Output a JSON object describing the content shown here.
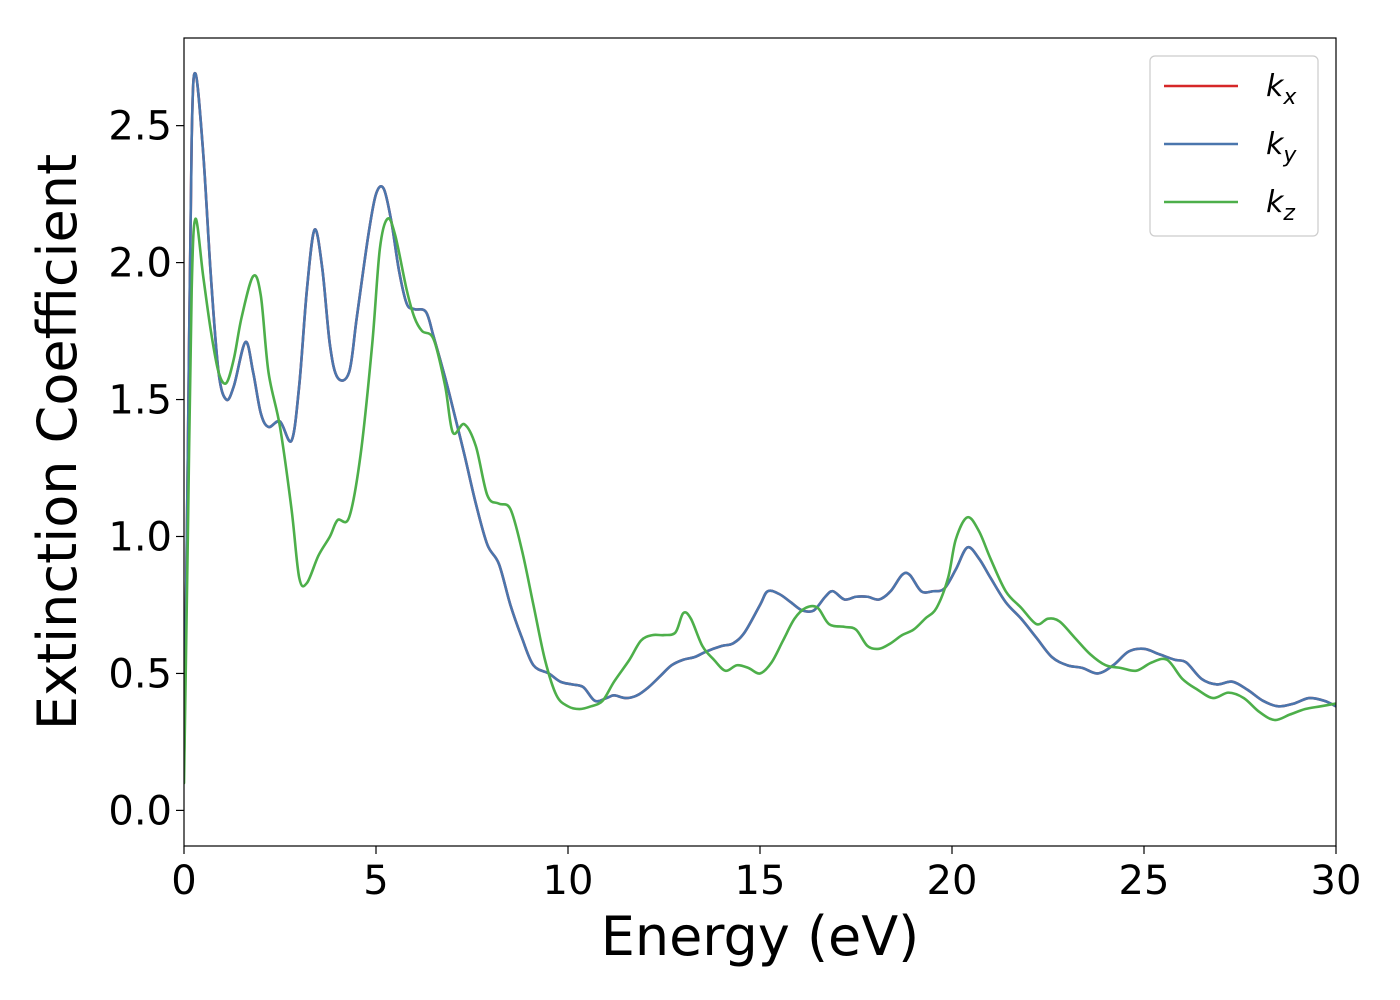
{
  "chart_data": {
    "type": "line",
    "title": "",
    "xlabel": "Energy (eV)",
    "ylabel": "Extinction Coefficient",
    "xlim": [
      0,
      30
    ],
    "ylim": [
      -0.13,
      2.82
    ],
    "xticks": [
      0,
      5,
      10,
      15,
      20,
      25,
      30
    ],
    "xtick_labels": [
      "0",
      "5",
      "10",
      "15",
      "20",
      "25",
      "30"
    ],
    "yticks": [
      0.0,
      0.5,
      1.0,
      1.5,
      2.0,
      2.5
    ],
    "ytick_labels": [
      "0.0",
      "0.5",
      "1.0",
      "1.5",
      "2.0",
      "2.5"
    ],
    "grid": false,
    "legend_position": "top-right",
    "series": [
      {
        "name": "k_x",
        "legend_base": "k",
        "legend_sub": "x",
        "color": "#d62728",
        "x": [
          0,
          0.1,
          0.2,
          0.3,
          0.5,
          0.7,
          0.9,
          1.1,
          1.3,
          1.6,
          1.8,
          2.0,
          2.2,
          2.5,
          2.8,
          3.0,
          3.2,
          3.4,
          3.6,
          3.8,
          4.0,
          4.3,
          4.5,
          4.8,
          5.0,
          5.2,
          5.4,
          5.6,
          5.8,
          6.0,
          6.3,
          6.5,
          6.8,
          7.0,
          7.3,
          7.6,
          7.9,
          8.2,
          8.5,
          8.8,
          9.1,
          9.5,
          9.8,
          10.1,
          10.4,
          10.7,
          11.0,
          11.2,
          11.5,
          11.8,
          12.1,
          12.4,
          12.7,
          13.0,
          13.3,
          13.6,
          14.0,
          14.3,
          14.6,
          15.0,
          15.2,
          15.5,
          15.8,
          16.1,
          16.4,
          16.7,
          16.9,
          17.2,
          17.5,
          17.8,
          18.1,
          18.4,
          18.7,
          18.9,
          19.2,
          19.5,
          19.8,
          20.1,
          20.4,
          20.7,
          21.0,
          21.4,
          21.8,
          22.2,
          22.6,
          23.0,
          23.4,
          23.8,
          24.2,
          24.6,
          25.0,
          25.4,
          25.8,
          26.1,
          26.5,
          26.9,
          27.3,
          27.7,
          28.1,
          28.5,
          28.9,
          29.3,
          29.7,
          30.0
        ],
        "y": [
          0.15,
          1.3,
          2.45,
          2.69,
          2.4,
          1.95,
          1.6,
          1.5,
          1.55,
          1.71,
          1.6,
          1.45,
          1.4,
          1.42,
          1.35,
          1.55,
          1.9,
          2.12,
          1.98,
          1.7,
          1.58,
          1.6,
          1.8,
          2.1,
          2.25,
          2.27,
          2.15,
          1.97,
          1.85,
          1.83,
          1.82,
          1.73,
          1.58,
          1.47,
          1.3,
          1.12,
          0.97,
          0.9,
          0.75,
          0.63,
          0.53,
          0.5,
          0.47,
          0.46,
          0.45,
          0.4,
          0.41,
          0.42,
          0.41,
          0.42,
          0.45,
          0.49,
          0.53,
          0.55,
          0.56,
          0.58,
          0.6,
          0.61,
          0.65,
          0.75,
          0.8,
          0.79,
          0.76,
          0.73,
          0.73,
          0.78,
          0.8,
          0.77,
          0.78,
          0.78,
          0.77,
          0.8,
          0.86,
          0.86,
          0.8,
          0.8,
          0.81,
          0.88,
          0.96,
          0.92,
          0.85,
          0.76,
          0.7,
          0.63,
          0.56,
          0.53,
          0.52,
          0.5,
          0.53,
          0.58,
          0.59,
          0.57,
          0.55,
          0.54,
          0.48,
          0.46,
          0.47,
          0.44,
          0.4,
          0.38,
          0.39,
          0.41,
          0.4,
          0.38
        ]
      },
      {
        "name": "k_y",
        "legend_base": "k",
        "legend_sub": "y",
        "color": "#4a76ad",
        "x": [
          0,
          0.1,
          0.2,
          0.3,
          0.5,
          0.7,
          0.9,
          1.1,
          1.3,
          1.6,
          1.8,
          2.0,
          2.2,
          2.5,
          2.8,
          3.0,
          3.2,
          3.4,
          3.6,
          3.8,
          4.0,
          4.3,
          4.5,
          4.8,
          5.0,
          5.2,
          5.4,
          5.6,
          5.8,
          6.0,
          6.3,
          6.5,
          6.8,
          7.0,
          7.3,
          7.6,
          7.9,
          8.2,
          8.5,
          8.8,
          9.1,
          9.5,
          9.8,
          10.1,
          10.4,
          10.7,
          11.0,
          11.2,
          11.5,
          11.8,
          12.1,
          12.4,
          12.7,
          13.0,
          13.3,
          13.6,
          14.0,
          14.3,
          14.6,
          15.0,
          15.2,
          15.5,
          15.8,
          16.1,
          16.4,
          16.7,
          16.9,
          17.2,
          17.5,
          17.8,
          18.1,
          18.4,
          18.7,
          18.9,
          19.2,
          19.5,
          19.8,
          20.1,
          20.4,
          20.7,
          21.0,
          21.4,
          21.8,
          22.2,
          22.6,
          23.0,
          23.4,
          23.8,
          24.2,
          24.6,
          25.0,
          25.4,
          25.8,
          26.1,
          26.5,
          26.9,
          27.3,
          27.7,
          28.1,
          28.5,
          28.9,
          29.3,
          29.7,
          30.0
        ],
        "y": [
          0.15,
          1.3,
          2.45,
          2.69,
          2.4,
          1.95,
          1.6,
          1.5,
          1.55,
          1.71,
          1.6,
          1.45,
          1.4,
          1.42,
          1.35,
          1.55,
          1.9,
          2.12,
          1.98,
          1.7,
          1.58,
          1.6,
          1.8,
          2.1,
          2.25,
          2.27,
          2.15,
          1.97,
          1.85,
          1.83,
          1.82,
          1.73,
          1.58,
          1.47,
          1.3,
          1.12,
          0.97,
          0.9,
          0.75,
          0.63,
          0.53,
          0.5,
          0.47,
          0.46,
          0.45,
          0.4,
          0.41,
          0.42,
          0.41,
          0.42,
          0.45,
          0.49,
          0.53,
          0.55,
          0.56,
          0.58,
          0.6,
          0.61,
          0.65,
          0.75,
          0.8,
          0.79,
          0.76,
          0.73,
          0.73,
          0.78,
          0.8,
          0.77,
          0.78,
          0.78,
          0.77,
          0.8,
          0.86,
          0.86,
          0.8,
          0.8,
          0.81,
          0.88,
          0.96,
          0.92,
          0.85,
          0.76,
          0.7,
          0.63,
          0.56,
          0.53,
          0.52,
          0.5,
          0.53,
          0.58,
          0.59,
          0.57,
          0.55,
          0.54,
          0.48,
          0.46,
          0.47,
          0.44,
          0.4,
          0.38,
          0.39,
          0.41,
          0.4,
          0.38
        ]
      },
      {
        "name": "k_z",
        "legend_base": "k",
        "legend_sub": "z",
        "color": "#4daf4a",
        "x": [
          0,
          0.1,
          0.2,
          0.3,
          0.5,
          0.7,
          0.9,
          1.1,
          1.3,
          1.5,
          1.8,
          2.0,
          2.2,
          2.5,
          2.8,
          3.0,
          3.2,
          3.5,
          3.8,
          4.0,
          4.3,
          4.6,
          4.9,
          5.1,
          5.3,
          5.5,
          5.8,
          6.0,
          6.2,
          6.5,
          6.8,
          7.0,
          7.3,
          7.6,
          7.9,
          8.2,
          8.5,
          8.8,
          9.1,
          9.4,
          9.7,
          10.0,
          10.3,
          10.6,
          10.9,
          11.2,
          11.6,
          11.9,
          12.2,
          12.5,
          12.8,
          13.0,
          13.2,
          13.5,
          13.8,
          14.1,
          14.4,
          14.7,
          15.0,
          15.3,
          15.6,
          15.9,
          16.2,
          16.5,
          16.8,
          17.2,
          17.5,
          17.8,
          18.1,
          18.4,
          18.7,
          19.0,
          19.3,
          19.6,
          19.9,
          20.1,
          20.4,
          20.7,
          21.0,
          21.4,
          21.8,
          22.2,
          22.5,
          22.8,
          23.2,
          23.6,
          24.0,
          24.4,
          24.8,
          25.2,
          25.6,
          26.0,
          26.4,
          26.8,
          27.2,
          27.6,
          28.0,
          28.4,
          28.8,
          29.2,
          29.6,
          30.0
        ],
        "y": [
          0.1,
          1.0,
          1.9,
          2.16,
          1.95,
          1.75,
          1.6,
          1.56,
          1.65,
          1.8,
          1.95,
          1.88,
          1.6,
          1.4,
          1.1,
          0.85,
          0.83,
          0.93,
          1.0,
          1.06,
          1.07,
          1.3,
          1.7,
          2.05,
          2.16,
          2.1,
          1.9,
          1.8,
          1.75,
          1.72,
          1.55,
          1.38,
          1.41,
          1.33,
          1.15,
          1.12,
          1.1,
          0.95,
          0.75,
          0.55,
          0.42,
          0.38,
          0.37,
          0.38,
          0.4,
          0.47,
          0.55,
          0.62,
          0.64,
          0.64,
          0.65,
          0.72,
          0.7,
          0.6,
          0.55,
          0.51,
          0.53,
          0.52,
          0.5,
          0.54,
          0.62,
          0.7,
          0.74,
          0.74,
          0.68,
          0.67,
          0.66,
          0.6,
          0.59,
          0.61,
          0.64,
          0.66,
          0.7,
          0.74,
          0.85,
          0.99,
          1.07,
          1.02,
          0.92,
          0.8,
          0.74,
          0.68,
          0.7,
          0.69,
          0.63,
          0.57,
          0.53,
          0.52,
          0.51,
          0.54,
          0.55,
          0.48,
          0.44,
          0.41,
          0.43,
          0.41,
          0.36,
          0.33,
          0.35,
          0.37,
          0.38,
          0.39
        ]
      }
    ]
  }
}
